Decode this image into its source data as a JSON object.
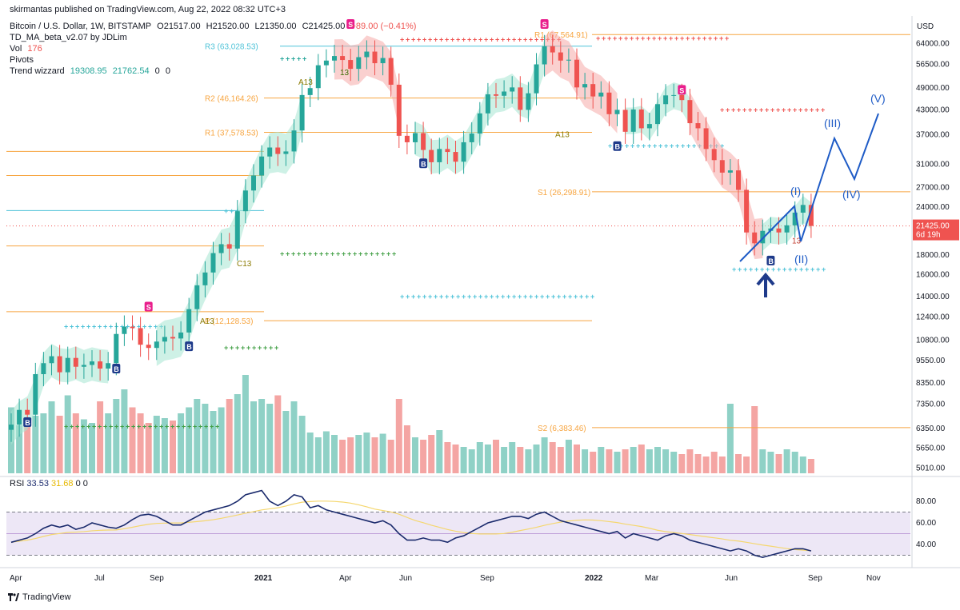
{
  "header": {
    "published": "skirmantas published on TradingView.com, Aug 22, 2022 08:32 UTC+3",
    "symbol": "Bitcoin / U.S. Dollar, 1W, BITSTAMP",
    "open": "O21517.00",
    "high": "H21520.00",
    "low": "L21350.00",
    "close": "C21425.00",
    "change": "−89.00 (−0.41%)",
    "indicator1": "TD_MA_beta_v2.07 by JDLim",
    "vol_label": "Vol",
    "vol_value": "176",
    "pivots_label": "Pivots",
    "trend_label": "Trend wizzard",
    "trend_v1": "19308.95",
    "trend_v2": "21762.54",
    "trend_v3": "0",
    "trend_v4": "0"
  },
  "rsi": {
    "label": "RSI",
    "value": "33.53",
    "ma_value": "31.68",
    "z1": "0",
    "z2": "0"
  },
  "footer": {
    "brand": "TradingView"
  },
  "colors": {
    "up": "#26a69a",
    "down": "#ef5350",
    "vol_up": "#8fd1c6",
    "vol_down": "#f4a5a3",
    "pivot_orange": "#f7a540",
    "pivot_cyan": "#4fc3d8",
    "wave": "#1e5bc6",
    "rsi_line": "#1a2a6c",
    "rsi_ma": "#f5d76e",
    "rsi_band": "#ede7f6"
  },
  "chart_data": {
    "type": "candlestick",
    "currency": "USD",
    "price_axis": {
      "scale": "log",
      "ticks": [
        "64000.00",
        "56500.00",
        "49000.00",
        "43000.00",
        "37000.00",
        "31000.00",
        "27000.00",
        "24000.00",
        "21425.00",
        "18000.00",
        "16000.00",
        "14000.00",
        "12400.00",
        "10800.00",
        "9550.00",
        "8350.00",
        "7350.00",
        "6350.00",
        "5650.00",
        "5010.00"
      ],
      "last_price": "21425.00",
      "countdown": "6d 19h"
    },
    "time_axis": [
      "Apr",
      "Jul",
      "Sep",
      "2021",
      "Apr",
      "Jun",
      "Sep",
      "2022",
      "Mar",
      "Jun",
      "Sep",
      "Nov"
    ],
    "closes": [
      6500,
      7100,
      6900,
      8800,
      9400,
      9800,
      8900,
      9700,
      9200,
      9300,
      9500,
      9100,
      9400,
      11200,
      11700,
      11600,
      10500,
      10300,
      10700,
      11000,
      10900,
      11300,
      13000,
      15000,
      16200,
      18200,
      19200,
      18700,
      23400,
      26500,
      29000,
      32500,
      34300,
      33000,
      33500,
      38000,
      47000,
      49000,
      56200,
      57800,
      59400,
      58000,
      55000,
      59000,
      61000,
      56900,
      58700,
      50000,
      36800,
      35400,
      37400,
      33800,
      31400,
      34000,
      33400,
      31500,
      35400,
      37300,
      42100,
      47200,
      46800,
      48000,
      49200,
      43000,
      47500,
      56500,
      63000,
      60700,
      57800,
      58100,
      49200,
      50200,
      46600,
      47700,
      41900,
      43000,
      37700,
      43100,
      38500,
      39500,
      44500,
      46900,
      47000,
      45600,
      39700,
      38500,
      34000,
      31800,
      29500,
      29900,
      26600,
      20600,
      19300,
      20800,
      21100,
      20600,
      21500,
      23200,
      24300,
      21425
    ],
    "opens": [
      6300,
      6500,
      7100,
      6900,
      8800,
      9400,
      9800,
      8900,
      9700,
      9200,
      9300,
      9500,
      9100,
      9400,
      11200,
      11700,
      11600,
      10500,
      10300,
      10700,
      11000,
      10900,
      11300,
      13000,
      15000,
      16200,
      18200,
      19200,
      18700,
      23400,
      26500,
      29000,
      32500,
      34300,
      33000,
      33500,
      38000,
      47000,
      49000,
      56200,
      57800,
      59400,
      58000,
      55000,
      59000,
      61000,
      56900,
      58700,
      50000,
      36800,
      35400,
      37400,
      33800,
      31400,
      34000,
      33400,
      31500,
      35400,
      37300,
      42100,
      47200,
      46800,
      48000,
      49200,
      43000,
      47500,
      56500,
      63000,
      60700,
      57800,
      58100,
      49200,
      50200,
      46600,
      47700,
      41900,
      43000,
      37700,
      43100,
      38500,
      39500,
      44500,
      46900,
      47000,
      45600,
      39700,
      38500,
      34000,
      31800,
      29500,
      29900,
      26600,
      20600,
      19300,
      20800,
      21100,
      20600,
      21500,
      23200,
      24300
    ],
    "volume_rel": [
      0.55,
      0.4,
      0.45,
      0.48,
      0.5,
      0.6,
      0.48,
      0.65,
      0.5,
      0.45,
      0.42,
      0.6,
      0.5,
      0.62,
      0.7,
      0.55,
      0.5,
      0.42,
      0.48,
      0.46,
      0.44,
      0.5,
      0.55,
      0.62,
      0.58,
      0.52,
      0.55,
      0.62,
      0.66,
      0.82,
      0.6,
      0.62,
      0.58,
      0.65,
      0.52,
      0.6,
      0.48,
      0.34,
      0.3,
      0.35,
      0.32,
      0.28,
      0.3,
      0.32,
      0.34,
      0.3,
      0.33,
      0.28,
      0.62,
      0.4,
      0.3,
      0.28,
      0.32,
      0.36,
      0.26,
      0.24,
      0.22,
      0.2,
      0.26,
      0.24,
      0.28,
      0.22,
      0.26,
      0.22,
      0.2,
      0.24,
      0.3,
      0.26,
      0.22,
      0.28,
      0.24,
      0.2,
      0.18,
      0.22,
      0.2,
      0.18,
      0.2,
      0.22,
      0.24,
      0.2,
      0.22,
      0.2,
      0.18,
      0.16,
      0.2,
      0.16,
      0.14,
      0.18,
      0.14,
      0.58,
      0.16,
      0.14,
      0.56,
      0.2,
      0.18,
      0.16,
      0.2,
      0.18,
      0.14,
      0.12
    ],
    "pivots": [
      {
        "label": "R3 (63,028.53)",
        "price": 63028.53,
        "color": "cyan"
      },
      {
        "label": "R2 (46,164.26)",
        "price": 46164.26,
        "color": "orange"
      },
      {
        "label": "R1 (37,578.53)",
        "price": 37578.53,
        "color": "orange"
      },
      {
        "label": "R1 (67,564.91)",
        "price": 67564.91,
        "color": "orange"
      },
      {
        "label": "S1 (26,298.91)",
        "price": 26298.91,
        "color": "orange"
      },
      {
        "label": "S2 (6,383.46)",
        "price": 6383.46,
        "color": "orange"
      },
      {
        "label": "P (12,128.53)",
        "price": 12128.53,
        "color": "orange"
      }
    ],
    "annotations": [
      "A13",
      "13",
      "A13",
      "C13",
      "A13",
      "13",
      "S",
      "B"
    ],
    "elliott_waves": [
      "(I)",
      "(II)",
      "(III)",
      "(IV)",
      "(V)"
    ],
    "rsi_ticks": [
      "80.00",
      "60.00",
      "40.00"
    ],
    "rsi_values": [
      42,
      44,
      46,
      50,
      55,
      58,
      56,
      58,
      54,
      56,
      60,
      58,
      56,
      55,
      58,
      63,
      67,
      68,
      66,
      62,
      58,
      58,
      62,
      66,
      70,
      72,
      74,
      76,
      80,
      86,
      88,
      90,
      80,
      76,
      80,
      86,
      84,
      74,
      76,
      72,
      70,
      68,
      66,
      64,
      62,
      60,
      62,
      58,
      50,
      44,
      44,
      46,
      44,
      44,
      42,
      46,
      48,
      52,
      56,
      60,
      62,
      64,
      66,
      66,
      64,
      68,
      70,
      66,
      62,
      60,
      58,
      56,
      54,
      52,
      50,
      52,
      46,
      50,
      48,
      46,
      44,
      48,
      50,
      48,
      44,
      42,
      40,
      38,
      36,
      34,
      36,
      34,
      30,
      28,
      30,
      32,
      34,
      36,
      36,
      34
    ]
  }
}
